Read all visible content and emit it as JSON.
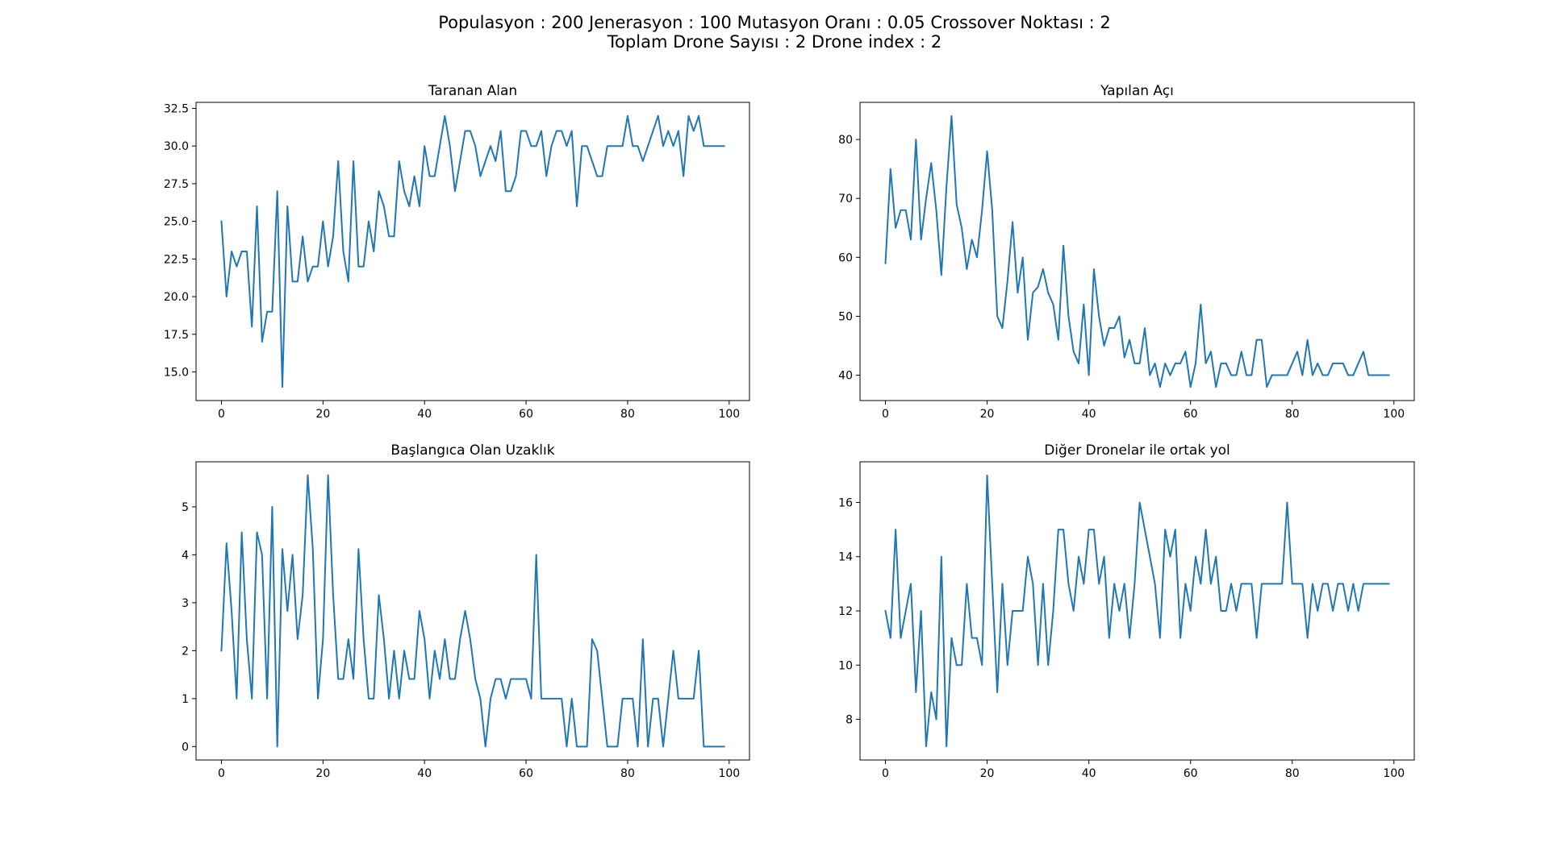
{
  "figure": {
    "suptitle_line1": "Populasyon : 200 Jenerasyon : 100 Mutasyon Oranı : 0.05 Crossover Noktası : 2",
    "suptitle_line2": "Toplam Drone Sayısı : 2 Drone index : 2",
    "line_color": "#1f77b4"
  },
  "chart_data": [
    {
      "type": "line",
      "title": "Taranan Alan",
      "xlabel": "",
      "ylabel": "",
      "xlim": [
        -5,
        104
      ],
      "ylim": [
        13.1,
        32.9
      ],
      "xticks": [
        0,
        20,
        40,
        60,
        80,
        100
      ],
      "yticks": [
        15.0,
        17.5,
        20.0,
        22.5,
        25.0,
        27.5,
        30.0,
        32.5
      ],
      "ytick_labels": [
        "15.0",
        "17.5",
        "20.0",
        "22.5",
        "25.0",
        "27.5",
        "30.0",
        "32.5"
      ],
      "grid": false,
      "y": [
        25,
        20,
        23,
        22,
        23,
        23,
        18,
        26,
        17,
        19,
        19,
        27,
        14,
        26,
        21,
        21,
        24,
        21,
        22,
        22,
        25,
        22,
        24,
        29,
        23,
        21,
        29,
        22,
        22,
        25,
        23,
        27,
        26,
        24,
        24,
        29,
        27,
        26,
        28,
        26,
        30,
        28,
        28,
        30,
        32,
        30,
        27,
        29,
        31,
        31,
        30,
        28,
        29,
        30,
        29,
        31,
        27,
        27,
        28,
        31,
        31,
        30,
        30,
        31,
        28,
        30,
        31,
        31,
        30,
        31,
        26,
        30,
        30,
        29,
        28,
        28,
        30,
        30,
        30,
        30,
        32,
        30,
        30,
        29,
        30,
        31,
        32,
        30,
        31,
        30,
        31,
        28,
        32,
        31,
        32,
        30,
        30,
        30,
        30,
        30
      ]
    },
    {
      "type": "line",
      "title": "Yapılan Açı",
      "xlabel": "",
      "ylabel": "",
      "xlim": [
        -5,
        104
      ],
      "ylim": [
        35.7,
        86.3
      ],
      "xticks": [
        0,
        20,
        40,
        60,
        80,
        100
      ],
      "yticks": [
        40,
        50,
        60,
        70,
        80
      ],
      "ytick_labels": [
        "40",
        "50",
        "60",
        "70",
        "80"
      ],
      "grid": false,
      "y": [
        59,
        75,
        65,
        68,
        68,
        63,
        80,
        63,
        70,
        76,
        68,
        57,
        72,
        84,
        69,
        65,
        58,
        63,
        60,
        68,
        78,
        68,
        50,
        48,
        56,
        66,
        54,
        60,
        46,
        54,
        55,
        58,
        54,
        52,
        46,
        62,
        50,
        44,
        42,
        52,
        40,
        58,
        50,
        45,
        48,
        48,
        50,
        43,
        46,
        42,
        42,
        48,
        40,
        42,
        38,
        42,
        40,
        42,
        42,
        44,
        38,
        42,
        52,
        42,
        44,
        38,
        42,
        42,
        40,
        40,
        44,
        40,
        40,
        46,
        46,
        38,
        40,
        40,
        40,
        40,
        42,
        44,
        40,
        46,
        40,
        42,
        40,
        40,
        42,
        42,
        42,
        40,
        40,
        42,
        44,
        40,
        40,
        40,
        40,
        40
      ]
    },
    {
      "type": "line",
      "title": "Başlangıca Olan Uzaklık",
      "xlabel": "",
      "ylabel": "",
      "xlim": [
        -5,
        104
      ],
      "ylim": [
        -0.28,
        5.94
      ],
      "xticks": [
        0,
        20,
        40,
        60,
        80,
        100
      ],
      "yticks": [
        0,
        1,
        2,
        3,
        4,
        5
      ],
      "ytick_labels": [
        "0",
        "1",
        "2",
        "3",
        "4",
        "5"
      ],
      "grid": false,
      "y": [
        2,
        4.24,
        2.83,
        1,
        4.47,
        2.24,
        1,
        4.47,
        4,
        1,
        5,
        0,
        4.12,
        2.83,
        4,
        2.24,
        3.16,
        5.66,
        4.12,
        1,
        2.24,
        5.66,
        3.16,
        1.41,
        1.41,
        2.24,
        1.41,
        4.12,
        2.24,
        1,
        1,
        3.16,
        2.24,
        1,
        2,
        1,
        2,
        1.41,
        1.41,
        2.83,
        2.24,
        1,
        2,
        1.41,
        2.24,
        1.41,
        1.41,
        2.24,
        2.83,
        2.24,
        1.41,
        1,
        0,
        1,
        1.41,
        1.41,
        1,
        1.41,
        1.41,
        1.41,
        1.41,
        1,
        4,
        1,
        1,
        1,
        1,
        1,
        0,
        1,
        0,
        0,
        0,
        2.24,
        2,
        1,
        0,
        0,
        0,
        1,
        1,
        1,
        0,
        2.24,
        0,
        1,
        1,
        0,
        1,
        2,
        1,
        1,
        1,
        1,
        2,
        0,
        0,
        0,
        0,
        0
      ]
    },
    {
      "type": "line",
      "title": "Diğer Dronelar ile ortak yol",
      "xlabel": "",
      "ylabel": "",
      "xlim": [
        -5,
        104
      ],
      "ylim": [
        6.5,
        17.5
      ],
      "xticks": [
        0,
        20,
        40,
        60,
        80,
        100
      ],
      "yticks": [
        8,
        10,
        12,
        14,
        16
      ],
      "ytick_labels": [
        "8",
        "10",
        "12",
        "14",
        "16"
      ],
      "grid": false,
      "y": [
        12,
        11,
        15,
        11,
        12,
        13,
        9,
        12,
        7,
        9,
        8,
        14,
        7,
        11,
        10,
        10,
        13,
        11,
        11,
        10,
        17,
        13,
        9,
        13,
        10,
        12,
        12,
        12,
        14,
        13,
        10,
        13,
        10,
        12,
        15,
        15,
        13,
        12,
        14,
        13,
        15,
        15,
        13,
        14,
        11,
        13,
        12,
        13,
        11,
        13,
        16,
        15,
        14,
        13,
        11,
        15,
        14,
        15,
        11,
        13,
        12,
        14,
        13,
        15,
        13,
        14,
        12,
        12,
        13,
        12,
        13,
        13,
        13,
        11,
        13,
        13,
        13,
        13,
        13,
        16,
        13,
        13,
        13,
        11,
        13,
        12,
        13,
        13,
        12,
        13,
        13,
        12,
        13,
        12,
        13,
        13,
        13,
        13,
        13,
        13
      ]
    }
  ]
}
